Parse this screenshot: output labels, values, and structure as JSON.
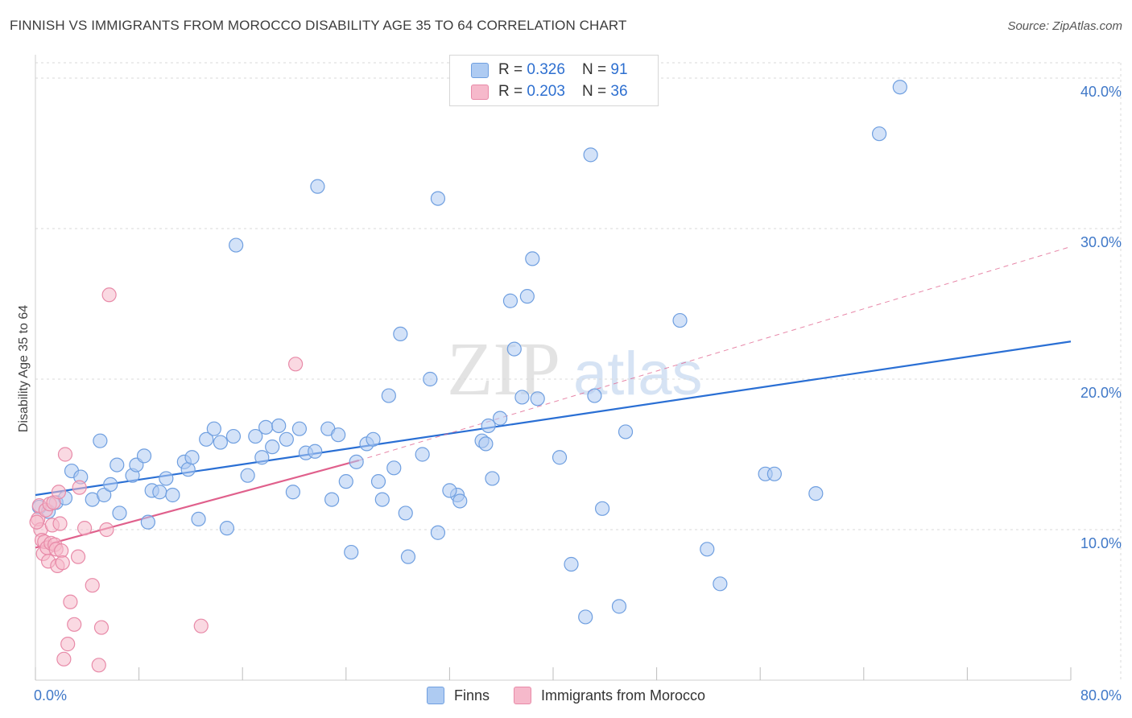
{
  "title": "FINNISH VS IMMIGRANTS FROM MOROCCO DISABILITY AGE 35 TO 64 CORRELATION CHART",
  "source": "Source: ZipAtlas.com",
  "watermark": {
    "zip": "ZIP",
    "atlas": "atlas"
  },
  "legend_top": [
    {
      "r_label": "R = ",
      "r_value": "0.326",
      "n_label": "N = ",
      "n_value": "91"
    },
    {
      "r_label": "R = ",
      "r_value": "0.203",
      "n_label": "N = ",
      "n_value": "36"
    }
  ],
  "colors": {
    "finns_fill": "#aecbf2",
    "finns_stroke": "#6f9fe0",
    "finns_line": "#2a6fd4",
    "morocco_fill": "#f6b9cb",
    "morocco_stroke": "#e88aa8",
    "morocco_line": "#e0608c",
    "tick_label": "#3f78c8",
    "grid": "#d9d9d9"
  },
  "chart_data": {
    "type": "scatter",
    "title": "FINNISH VS IMMIGRANTS FROM MOROCCO DISABILITY AGE 35 TO 64 CORRELATION CHART",
    "xlabel": "",
    "ylabel": "Disability Age 35 to 64",
    "xlim": [
      0,
      80
    ],
    "ylim": [
      0,
      40
    ],
    "x_tick_labels": [
      "0.0%",
      "80.0%"
    ],
    "y_ticks": [
      10,
      20,
      30,
      40
    ],
    "y_tick_labels": [
      "10.0%",
      "20.0%",
      "30.0%",
      "40.0%"
    ],
    "grid": true,
    "legend_position": "bottom-center",
    "series": [
      {
        "name": "Finns",
        "r": 0.326,
        "n": 91,
        "trend": {
          "x": [
            0,
            80
          ],
          "y": [
            12.3,
            22.5
          ],
          "style": "solid"
        },
        "points": [
          [
            0.3,
            11.5
          ],
          [
            1.0,
            11.2
          ],
          [
            1.6,
            11.8
          ],
          [
            2.3,
            12.1
          ],
          [
            2.8,
            13.9
          ],
          [
            3.5,
            13.5
          ],
          [
            4.4,
            12.0
          ],
          [
            5.0,
            15.9
          ],
          [
            5.3,
            12.3
          ],
          [
            5.8,
            13.0
          ],
          [
            6.5,
            11.1
          ],
          [
            6.3,
            14.3
          ],
          [
            7.5,
            13.6
          ],
          [
            7.8,
            14.3
          ],
          [
            8.4,
            14.9
          ],
          [
            8.7,
            10.5
          ],
          [
            9.0,
            12.6
          ],
          [
            9.6,
            12.5
          ],
          [
            10.1,
            13.4
          ],
          [
            10.6,
            12.3
          ],
          [
            11.5,
            14.5
          ],
          [
            11.8,
            14.0
          ],
          [
            12.1,
            14.8
          ],
          [
            12.6,
            10.7
          ],
          [
            13.2,
            16.0
          ],
          [
            13.8,
            16.7
          ],
          [
            14.3,
            15.8
          ],
          [
            14.8,
            10.1
          ],
          [
            15.3,
            16.2
          ],
          [
            15.5,
            28.9
          ],
          [
            16.4,
            13.6
          ],
          [
            17.0,
            16.2
          ],
          [
            17.5,
            14.8
          ],
          [
            17.8,
            16.8
          ],
          [
            18.3,
            15.5
          ],
          [
            18.8,
            16.9
          ],
          [
            19.4,
            16.0
          ],
          [
            19.9,
            12.5
          ],
          [
            20.4,
            16.7
          ],
          [
            20.9,
            15.1
          ],
          [
            21.6,
            15.2
          ],
          [
            21.8,
            32.8
          ],
          [
            22.6,
            16.7
          ],
          [
            22.9,
            12.0
          ],
          [
            23.4,
            16.3
          ],
          [
            24.0,
            13.2
          ],
          [
            24.4,
            8.5
          ],
          [
            24.8,
            14.5
          ],
          [
            25.6,
            15.7
          ],
          [
            26.1,
            16.0
          ],
          [
            26.5,
            13.2
          ],
          [
            26.8,
            12.0
          ],
          [
            27.3,
            18.9
          ],
          [
            27.7,
            14.1
          ],
          [
            28.2,
            23.0
          ],
          [
            28.6,
            11.1
          ],
          [
            28.8,
            8.2
          ],
          [
            29.9,
            15.0
          ],
          [
            30.5,
            20.0
          ],
          [
            31.1,
            9.8
          ],
          [
            31.1,
            32.0
          ],
          [
            32.6,
            12.3
          ],
          [
            32.8,
            11.9
          ],
          [
            34.5,
            15.9
          ],
          [
            34.8,
            15.7
          ],
          [
            35.0,
            16.9
          ],
          [
            35.3,
            13.4
          ],
          [
            35.9,
            17.4
          ],
          [
            36.7,
            25.2
          ],
          [
            37.0,
            22.0
          ],
          [
            37.6,
            18.8
          ],
          [
            38.0,
            25.5
          ],
          [
            38.4,
            28.0
          ],
          [
            38.8,
            18.7
          ],
          [
            40.5,
            14.8
          ],
          [
            41.4,
            7.7
          ],
          [
            42.5,
            4.2
          ],
          [
            42.9,
            34.9
          ],
          [
            43.2,
            18.9
          ],
          [
            43.8,
            11.4
          ],
          [
            45.1,
            4.9
          ],
          [
            49.8,
            23.9
          ],
          [
            51.9,
            8.7
          ],
          [
            52.9,
            6.4
          ],
          [
            56.4,
            13.7
          ],
          [
            57.1,
            13.7
          ],
          [
            60.3,
            12.4
          ],
          [
            65.2,
            36.3
          ],
          [
            66.8,
            39.4
          ],
          [
            45.6,
            16.5
          ],
          [
            32.0,
            12.6
          ]
        ]
      },
      {
        "name": "Immigrants from Morocco",
        "r": 0.203,
        "n": 36,
        "trend": {
          "x": [
            0,
            25
          ],
          "y": [
            8.8,
            14.6
          ],
          "style": "solid",
          "extension": {
            "x": [
              25,
              80
            ],
            "y": [
              14.6,
              28.8
            ],
            "style": "dashed"
          }
        },
        "points": [
          [
            0.2,
            10.7
          ],
          [
            0.3,
            11.6
          ],
          [
            0.4,
            10.0
          ],
          [
            0.5,
            9.3
          ],
          [
            0.6,
            8.4
          ],
          [
            0.7,
            9.2
          ],
          [
            0.8,
            11.3
          ],
          [
            0.9,
            8.8
          ],
          [
            1.0,
            7.9
          ],
          [
            1.1,
            11.7
          ],
          [
            1.2,
            9.1
          ],
          [
            1.3,
            10.3
          ],
          [
            1.4,
            11.8
          ],
          [
            1.5,
            9.0
          ],
          [
            1.6,
            8.7
          ],
          [
            1.7,
            7.6
          ],
          [
            1.8,
            12.5
          ],
          [
            1.9,
            10.4
          ],
          [
            2.0,
            8.6
          ],
          [
            2.1,
            7.8
          ],
          [
            2.2,
            1.4
          ],
          [
            2.3,
            15.0
          ],
          [
            2.5,
            2.4
          ],
          [
            2.7,
            5.2
          ],
          [
            3.0,
            3.7
          ],
          [
            3.3,
            8.2
          ],
          [
            3.4,
            12.8
          ],
          [
            3.8,
            10.1
          ],
          [
            4.4,
            6.3
          ],
          [
            4.9,
            1.0
          ],
          [
            5.1,
            3.5
          ],
          [
            5.5,
            10.0
          ],
          [
            5.7,
            25.6
          ],
          [
            12.8,
            3.6
          ],
          [
            20.1,
            21.0
          ],
          [
            0.1,
            10.5
          ]
        ]
      }
    ]
  }
}
